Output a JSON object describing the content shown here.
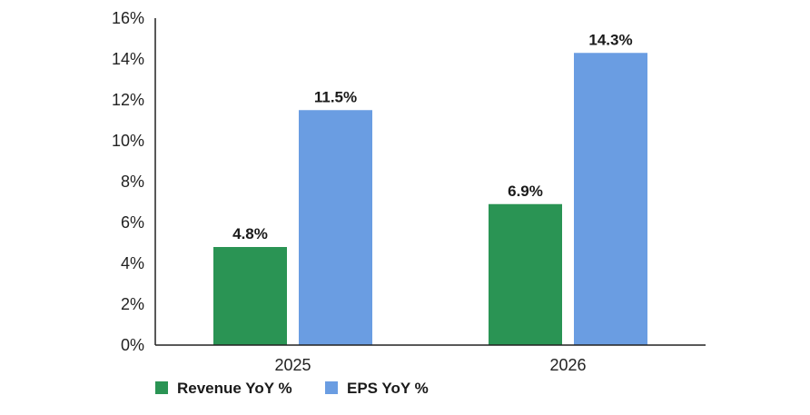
{
  "chart_data": {
    "type": "bar",
    "title": "",
    "xlabel": "",
    "ylabel": "",
    "categories": [
      "2025",
      "2026"
    ],
    "series": [
      {
        "name": "Revenue YoY %",
        "color": "#2a9454",
        "values": [
          4.8,
          6.9
        ],
        "labels": [
          "4.8%",
          "6.9%"
        ]
      },
      {
        "name": "EPS YoY %",
        "color": "#6a9de2",
        "values": [
          11.5,
          14.3
        ],
        "labels": [
          "11.5%",
          "14.3%"
        ]
      }
    ],
    "ylim": [
      0,
      16
    ],
    "yticks": [
      0,
      2,
      4,
      6,
      8,
      10,
      12,
      14,
      16
    ],
    "ytick_labels": [
      "0%",
      "2%",
      "4%",
      "6%",
      "8%",
      "10%",
      "12%",
      "14%",
      "16%"
    ],
    "grid": false,
    "legend_position": "bottom-left"
  }
}
